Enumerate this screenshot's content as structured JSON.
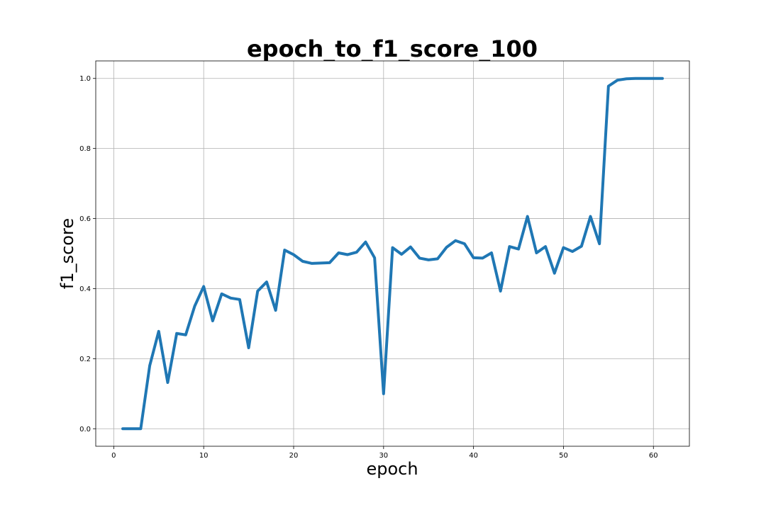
{
  "chart_data": {
    "type": "line",
    "title": "epoch_to_f1_score_100",
    "xlabel": "epoch",
    "ylabel": "f1_score",
    "xlim": [
      -2,
      64
    ],
    "ylim": [
      -0.05,
      1.05
    ],
    "xticks": [
      0,
      10,
      20,
      30,
      40,
      50,
      60
    ],
    "xtick_labels": [
      "0",
      "10",
      "20",
      "30",
      "40",
      "50",
      "60"
    ],
    "yticks": [
      0.0,
      0.2,
      0.4,
      0.6,
      0.8,
      1.0
    ],
    "ytick_labels": [
      "0.0",
      "0.2",
      "0.4",
      "0.6",
      "0.8",
      "1.0"
    ],
    "grid": true,
    "line_color": "#1f77b4",
    "series": [
      {
        "x": [
          1,
          2,
          3,
          4,
          5,
          6,
          7,
          8,
          9,
          10,
          11,
          12,
          13,
          14,
          15,
          16,
          17,
          18,
          19,
          20,
          21,
          22,
          23,
          24,
          25,
          26,
          27,
          28,
          29,
          30,
          31,
          32,
          33,
          34,
          35,
          36,
          37,
          38,
          39,
          40,
          41,
          42,
          43,
          44,
          45,
          46,
          47,
          48,
          49,
          50,
          51,
          52,
          53,
          54,
          55,
          56,
          57,
          58,
          59,
          60,
          61
        ],
        "values": [
          0.0,
          0.0,
          0.0,
          0.18,
          0.278,
          0.132,
          0.272,
          0.268,
          0.35,
          0.406,
          0.308,
          0.385,
          0.373,
          0.369,
          0.231,
          0.393,
          0.419,
          0.338,
          0.51,
          0.497,
          0.478,
          0.472,
          0.473,
          0.474,
          0.502,
          0.497,
          0.504,
          0.533,
          0.488,
          0.1,
          0.517,
          0.498,
          0.519,
          0.487,
          0.482,
          0.485,
          0.518,
          0.537,
          0.528,
          0.488,
          0.487,
          0.502,
          0.393,
          0.52,
          0.513,
          0.606,
          0.502,
          0.52,
          0.444,
          0.517,
          0.506,
          0.521,
          0.606,
          0.528,
          0.978,
          0.995,
          0.999,
          1.0,
          1.0,
          1.0,
          1.0
        ]
      }
    ]
  }
}
